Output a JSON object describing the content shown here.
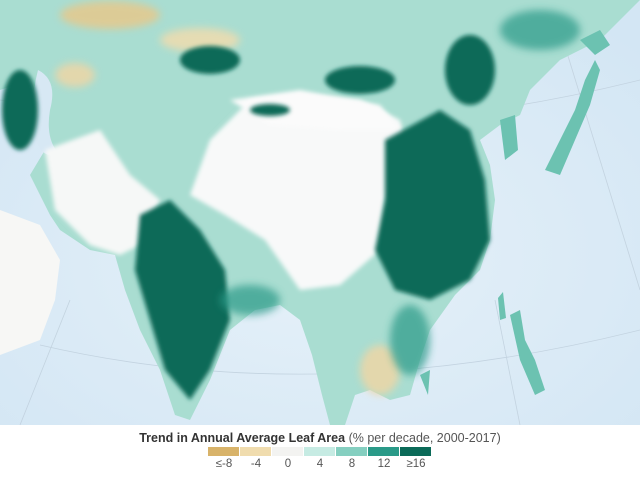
{
  "legend": {
    "title": "Trend in Annual Average Leaf Area",
    "subtitle": "(% per decade, 2000-2017)",
    "classes": [
      {
        "label": "≤-8",
        "color": "#d8b36a"
      },
      {
        "label": "-4",
        "color": "#f0dcae"
      },
      {
        "label": "0",
        "color": "#f3f3f1"
      },
      {
        "label": "4",
        "color": "#c6ebe3"
      },
      {
        "label": "8",
        "color": "#85cfc0"
      },
      {
        "label": "12",
        "color": "#2a9a88"
      },
      {
        "label": "≥16",
        "color": "#0b6a58"
      }
    ]
  },
  "colors": {
    "ocean": "#dbeaf5",
    "snow_desert": "#ffffff"
  }
}
